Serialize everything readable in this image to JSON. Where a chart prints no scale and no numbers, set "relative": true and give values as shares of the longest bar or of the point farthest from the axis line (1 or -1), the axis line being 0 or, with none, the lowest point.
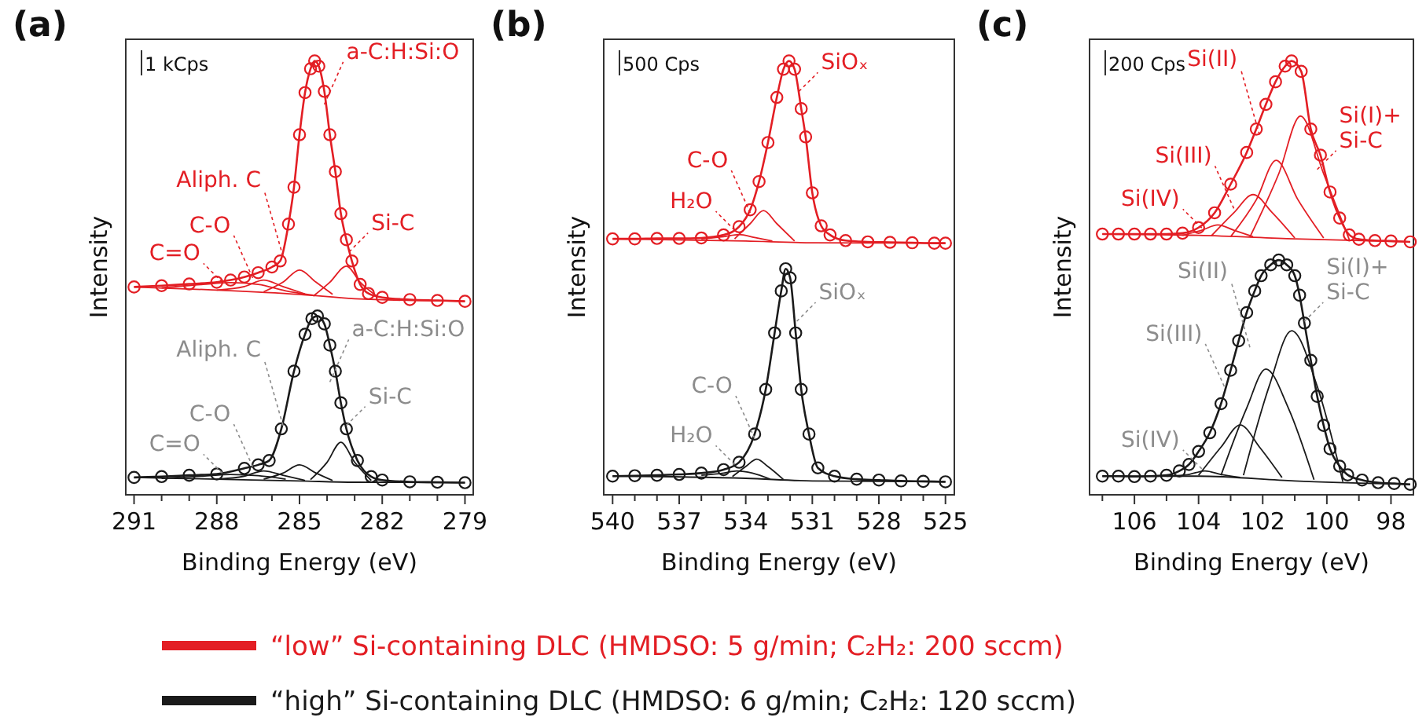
{
  "chart_data": [
    {
      "type": "line",
      "title": "(a)",
      "xlabel": "Binding Energy (eV)",
      "ylabel": "Intensity",
      "relative": true,
      "legend": "bottom",
      "xlim": [
        291.3,
        278.7
      ],
      "xticks": [
        291,
        {
          "value": 290,
          "label": null
        },
        {
          "value": 289,
          "label": null
        },
        288,
        {
          "value": 287,
          "label": null
        },
        {
          "value": 286,
          "label": null
        },
        285,
        {
          "value": 284,
          "label": null
        },
        {
          "value": 283,
          "label": null
        },
        282,
        {
          "value": 281,
          "label": null
        },
        {
          "value": 280,
          "label": null
        },
        279
      ],
      "annotations": [
        "1 kCps",
        {
          "text": "C=O",
          "x": 287.8,
          "y": 0.49
        },
        {
          "text": "C-O",
          "x": 286.7,
          "y": 0.5
        },
        {
          "text": "Aliph. C",
          "x": 285.6,
          "y": 0.55
        },
        {
          "text": "Si-C",
          "x": 283.2,
          "y": 0.56
        },
        {
          "text": "a-C:H:Si:O",
          "x": 284.1,
          "y": 0.9
        },
        {
          "text": "C=O",
          "x": 287.8,
          "y": 0.05
        },
        {
          "text": "C-O",
          "x": 286.7,
          "y": 0.065
        },
        {
          "text": "Aliph. C",
          "x": 285.6,
          "y": 0.16
        },
        {
          "text": "Si-C",
          "x": 283.3,
          "y": 0.16
        },
        {
          "text": "a-C:H:Si:O",
          "x": 283.9,
          "y": 0.26
        }
      ],
      "series": [
        {
          "name": "“low” Si-containing DLC (HMDSO: 5 g/min; C₂H₂: 200 sccm)",
          "color": "#e31e24",
          "marker": "circle",
          "x": [
            291,
            290,
            289,
            288,
            287.5,
            287,
            286.5,
            286,
            285.7,
            285.4,
            285.2,
            285,
            284.8,
            284.6,
            284.45,
            284.3,
            284.1,
            283.9,
            283.7,
            283.5,
            283.3,
            283.1,
            282.8,
            282.5,
            282,
            281,
            280,
            279
          ],
          "values": [
            0.479,
            0.482,
            0.486,
            0.49,
            0.495,
            0.502,
            0.512,
            0.525,
            0.539,
            0.624,
            0.709,
            0.83,
            0.927,
            0.982,
            1,
            0.988,
            0.93,
            0.83,
            0.745,
            0.648,
            0.588,
            0.539,
            0.485,
            0.464,
            0.455,
            0.45,
            0.448,
            0.446
          ]
        },
        {
          "color": "#e31e24",
          "x": [
            291,
            288,
            285,
            283,
            279
          ],
          "values": [
            0.479,
            0.472,
            0.462,
            0.452,
            0.446
          ]
        },
        {
          "color": "#e31e24",
          "x": [
            290,
            288.5,
            287.5,
            286.5,
            285.5,
            284.5
          ],
          "values": [
            0.477,
            0.485,
            0.489,
            0.485,
            0.47,
            0.46
          ]
        },
        {
          "color": "#e31e24",
          "x": [
            288,
            287,
            286.3,
            285.6,
            284.8
          ],
          "values": [
            0.472,
            0.48,
            0.495,
            0.48,
            0.463
          ]
        },
        {
          "color": "#e31e24",
          "x": [
            286.3,
            285.6,
            285,
            284.4,
            283.8
          ],
          "values": [
            0.468,
            0.49,
            0.518,
            0.49,
            0.462
          ]
        },
        {
          "color": "#e31e24",
          "x": [
            284.5,
            283.9,
            283.3,
            282.8,
            282.2
          ],
          "values": [
            0.458,
            0.49,
            0.527,
            0.49,
            0.458
          ]
        },
        {
          "name": "“high” Si-containing DLC (HMDSO: 6 g/min; C₂H₂: 120 sccm)",
          "color": "#1a1a1a",
          "marker": "circle",
          "x": [
            291,
            290,
            289,
            288,
            287,
            286.5,
            286.1,
            285.66,
            285.2,
            284.8,
            284.55,
            284.35,
            284.1,
            283.9,
            283.7,
            283.5,
            283.3,
            282.9,
            282.4,
            282,
            281,
            280,
            279
          ],
          "values": [
            0.04,
            0.042,
            0.045,
            0.048,
            0.061,
            0.069,
            0.079,
            0.152,
            0.285,
            0.37,
            0.406,
            0.412,
            0.394,
            0.345,
            0.285,
            0.212,
            0.152,
            0.079,
            0.042,
            0.034,
            0.03,
            0.029,
            0.028
          ]
        },
        {
          "color": "#1a1a1a",
          "x": [
            291,
            288,
            285,
            283,
            279
          ],
          "values": [
            0.04,
            0.036,
            0.032,
            0.029,
            0.028
          ]
        },
        {
          "color": "#1a1a1a",
          "x": [
            290,
            288.5,
            287.5,
            286.5,
            285.5
          ],
          "values": [
            0.038,
            0.043,
            0.047,
            0.044,
            0.036
          ]
        },
        {
          "color": "#1a1a1a",
          "x": [
            288,
            287,
            286.3,
            285.6,
            284.8
          ],
          "values": [
            0.036,
            0.043,
            0.055,
            0.045,
            0.033
          ]
        },
        {
          "color": "#1a1a1a",
          "x": [
            286.3,
            285.6,
            285,
            284.4,
            283.8
          ],
          "values": [
            0.036,
            0.05,
            0.069,
            0.05,
            0.033
          ]
        },
        {
          "color": "#1a1a1a",
          "x": [
            284.6,
            284,
            283.5,
            283,
            282.4
          ],
          "values": [
            0.035,
            0.075,
            0.121,
            0.075,
            0.033
          ]
        }
      ]
    },
    {
      "type": "line",
      "title": "(b)",
      "xlabel": "Binding Energy (eV)",
      "ylabel": "Intensity",
      "relative": true,
      "xlim": [
        540.4,
        524.6
      ],
      "xticks": [
        540,
        {
          "value": 539,
          "label": null
        },
        {
          "value": 538,
          "label": null
        },
        537,
        {
          "value": 536,
          "label": null
        },
        {
          "value": 535,
          "label": null
        },
        534,
        {
          "value": 533,
          "label": null
        },
        {
          "value": 532,
          "label": null
        },
        531,
        {
          "value": 530,
          "label": null
        },
        {
          "value": 529,
          "label": null
        },
        528,
        {
          "value": 527,
          "label": null
        },
        {
          "value": 526,
          "label": null
        },
        525
      ],
      "annotations": [
        "500 Cps",
        {
          "text": "H₂O",
          "x": 534.5,
          "y": 0.61
        },
        {
          "text": "C-O",
          "x": 533.8,
          "y": 0.65
        },
        {
          "text": "SiOₓ",
          "x": 531.6,
          "y": 0.93
        },
        {
          "text": "H₂O",
          "x": 534.5,
          "y": 0.07
        },
        {
          "text": "C-O",
          "x": 533.6,
          "y": 0.13
        },
        {
          "text": "SiOₓ",
          "x": 531.7,
          "y": 0.4
        }
      ],
      "series": [
        {
          "color": "#e31e24",
          "marker": "circle",
          "x": [
            540,
            539,
            538,
            537,
            536,
            535,
            534.3,
            533.8,
            533.4,
            533,
            532.6,
            532.3,
            532.05,
            531.8,
            531.5,
            531.3,
            531,
            530.6,
            530.2,
            529.5,
            528.5,
            527.5,
            526.5,
            525.5,
            525
          ],
          "values": [
            0.59,
            0.59,
            0.591,
            0.591,
            0.592,
            0.599,
            0.618,
            0.657,
            0.722,
            0.812,
            0.916,
            0.981,
            1,
            0.981,
            0.89,
            0.825,
            0.696,
            0.62,
            0.599,
            0.586,
            0.583,
            0.582,
            0.581,
            0.58,
            0.58
          ]
        },
        {
          "color": "#e31e24",
          "x": [
            540,
            534,
            531,
            525
          ],
          "values": [
            0.59,
            0.585,
            0.581,
            0.58
          ]
        },
        {
          "color": "#e31e24",
          "x": [
            536,
            535,
            534.3,
            533.6,
            532.8
          ],
          "values": [
            0.59,
            0.595,
            0.6,
            0.593,
            0.585
          ]
        },
        {
          "color": "#e31e24",
          "x": [
            534.5,
            533.8,
            533.2,
            532.6,
            531.8
          ],
          "values": [
            0.59,
            0.625,
            0.655,
            0.625,
            0.585
          ]
        },
        {
          "color": "#1a1a1a",
          "marker": "circle",
          "x": [
            540,
            539,
            538,
            537,
            536,
            535,
            534.3,
            533.6,
            533.1,
            532.7,
            532.4,
            532.2,
            532,
            531.75,
            531.5,
            531.15,
            530.75,
            530,
            529,
            528,
            527,
            526,
            525
          ],
          "values": [
            0.043,
            0.044,
            0.045,
            0.047,
            0.05,
            0.058,
            0.075,
            0.14,
            0.243,
            0.373,
            0.47,
            0.521,
            0.5,
            0.373,
            0.243,
            0.14,
            0.062,
            0.043,
            0.036,
            0.034,
            0.032,
            0.031,
            0.03
          ]
        },
        {
          "color": "#1a1a1a",
          "x": [
            540,
            534,
            531,
            525
          ],
          "values": [
            0.043,
            0.038,
            0.032,
            0.03
          ]
        },
        {
          "color": "#1a1a1a",
          "x": [
            536,
            535,
            534.4,
            533.7,
            532.9
          ],
          "values": [
            0.045,
            0.05,
            0.055,
            0.05,
            0.036
          ]
        },
        {
          "color": "#1a1a1a",
          "x": [
            534.6,
            534,
            533.5,
            533,
            532.3
          ],
          "values": [
            0.042,
            0.065,
            0.082,
            0.065,
            0.035
          ]
        }
      ]
    },
    {
      "type": "line",
      "title": "(c)",
      "xlabel": "Binding Energy (eV)",
      "ylabel": "Intensity",
      "relative": true,
      "xlim": [
        107.4,
        97.3
      ],
      "xticks": [
        {
          "value": 107,
          "label": null
        },
        106,
        {
          "value": 105,
          "label": null
        },
        104,
        {
          "value": 103,
          "label": null
        },
        102,
        {
          "value": 101,
          "label": null
        },
        100,
        {
          "value": 99,
          "label": null
        },
        98
      ],
      "annotations": [
        "200 Cps",
        {
          "text": "Si(IV)",
          "x": 103.9,
          "y": 0.615
        },
        {
          "text": "Si(III)",
          "x": 102.9,
          "y": 0.66
        },
        {
          "text": "Si(II)",
          "x": 102.1,
          "y": 0.83
        },
        {
          "text": "Si(I)+\nSi-C",
          "x": 100.3,
          "y": 0.75
        },
        {
          "text": "Si(IV)",
          "x": 103.9,
          "y": 0.06
        },
        {
          "text": "Si(III)",
          "x": 103.2,
          "y": 0.25
        },
        {
          "text": "Si(II)",
          "x": 102.4,
          "y": 0.34
        },
        {
          "text": "Si(I)+\nSi-C",
          "x": 100.7,
          "y": 0.4
        }
      ],
      "series": [
        {
          "color": "#e31e24",
          "marker": "circle",
          "x": [
            107,
            106.5,
            106,
            105.5,
            105,
            104.5,
            104,
            103.5,
            103,
            102.5,
            102.2,
            101.9,
            101.6,
            101.3,
            101.1,
            100.8,
            100.5,
            100.2,
            99.9,
            99.6,
            99.3,
            99,
            98.5,
            98,
            97.4
          ],
          "values": [
            0.601,
            0.601,
            0.601,
            0.601,
            0.601,
            0.603,
            0.616,
            0.65,
            0.716,
            0.789,
            0.843,
            0.9,
            0.952,
            0.988,
            1,
            0.976,
            0.843,
            0.783,
            0.698,
            0.638,
            0.599,
            0.589,
            0.586,
            0.585,
            0.583
          ]
        },
        {
          "color": "#e31e24",
          "x": [
            107,
            104,
            101,
            97.4
          ],
          "values": [
            0.601,
            0.598,
            0.59,
            0.583
          ]
        },
        {
          "color": "#e31e24",
          "x": [
            104.5,
            103.9,
            103.4,
            102.9,
            102.3
          ],
          "values": [
            0.598,
            0.61,
            0.622,
            0.61,
            0.595
          ]
        },
        {
          "color": "#e31e24",
          "x": [
            103.6,
            102.9,
            102.3,
            101.7,
            101
          ],
          "values": [
            0.597,
            0.65,
            0.692,
            0.65,
            0.592
          ]
        },
        {
          "color": "#e31e24",
          "x": [
            103,
            102.2,
            101.58,
            100.9,
            100.1
          ],
          "values": [
            0.595,
            0.68,
            0.771,
            0.68,
            0.592
          ]
        },
        {
          "color": "#e31e24",
          "x": [
            102.4,
            101.5,
            100.82,
            100.1,
            99.3
          ],
          "values": [
            0.594,
            0.74,
            0.873,
            0.74,
            0.588
          ]
        },
        {
          "color": "#1a1a1a",
          "marker": "circle",
          "x": [
            107,
            106.5,
            106,
            105.5,
            105,
            104.6,
            104.3,
            104,
            103.65,
            103.3,
            103,
            102.75,
            102.5,
            102.25,
            102.05,
            101.75,
            101.5,
            101.25,
            101,
            100.85,
            100.7,
            100.5,
            100.3,
            100.1,
            99.9,
            99.6,
            99.35,
            98.9,
            98.4,
            97.9,
            97.4
          ],
          "values": [
            0.043,
            0.043,
            0.042,
            0.043,
            0.045,
            0.055,
            0.07,
            0.1,
            0.143,
            0.21,
            0.287,
            0.355,
            0.42,
            0.47,
            0.505,
            0.53,
            0.541,
            0.53,
            0.505,
            0.46,
            0.396,
            0.31,
            0.227,
            0.16,
            0.106,
            0.066,
            0.046,
            0.034,
            0.028,
            0.026,
            0.024
          ]
        },
        {
          "color": "#1a1a1a",
          "x": [
            107,
            104,
            101,
            97.4
          ],
          "values": [
            0.043,
            0.043,
            0.032,
            0.024
          ]
        },
        {
          "color": "#1a1a1a",
          "x": [
            105,
            104.3,
            103.8,
            103.3,
            102.7
          ],
          "values": [
            0.043,
            0.047,
            0.055,
            0.047,
            0.04
          ]
        },
        {
          "color": "#1a1a1a",
          "x": [
            104,
            103.3,
            102.7,
            102.1,
            101.4
          ],
          "values": [
            0.045,
            0.11,
            0.161,
            0.11,
            0.04
          ]
        },
        {
          "color": "#1a1a1a",
          "x": [
            103.3,
            102.5,
            101.9,
            101.2,
            100.4
          ],
          "values": [
            0.045,
            0.2,
            0.29,
            0.2,
            0.035
          ]
        },
        {
          "color": "#1a1a1a",
          "x": [
            102.6,
            101.8,
            101.1,
            100.3,
            99.5
          ],
          "values": [
            0.045,
            0.25,
            0.378,
            0.25,
            0.03
          ]
        }
      ]
    }
  ]
}
